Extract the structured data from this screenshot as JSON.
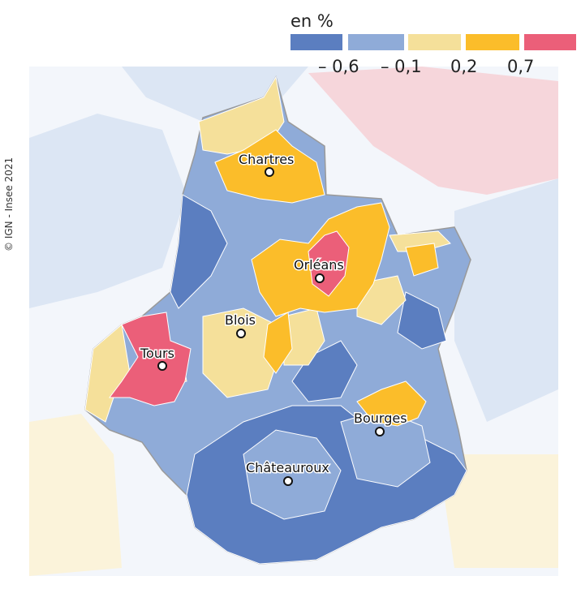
{
  "credit": "© IGN - Insee 2021",
  "legend": {
    "unit": "en %",
    "classes": [
      {
        "color": "#5b7ec0"
      },
      {
        "color": "#8fabd8"
      },
      {
        "color": "#f5e09a"
      },
      {
        "color": "#fbbd2a"
      },
      {
        "color": "#eb5f79"
      }
    ],
    "breaks": [
      "– 0,6",
      "– 0,1",
      "0,2",
      "0,7"
    ]
  },
  "cities": [
    {
      "name": "Chartres"
    },
    {
      "name": "Orléans"
    },
    {
      "name": "Blois"
    },
    {
      "name": "Tours"
    },
    {
      "name": "Bourges"
    },
    {
      "name": "Châteauroux"
    }
  ],
  "colors": {
    "outside_light_blue": "#dce6f4",
    "outside_light_yellow": "#fbf3da",
    "outside_light_pink": "#f6d6db",
    "region_border": "#9a9a9a",
    "zone_border": "#ffffff"
  }
}
